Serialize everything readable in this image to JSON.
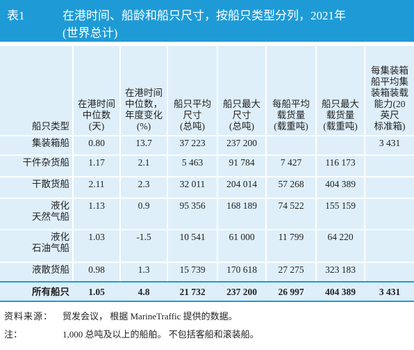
{
  "title": {
    "label": "表1",
    "text": "在港时间、船龄和船只尺寸，按船只类型分列，2021年",
    "subtitle": "(世界总计)"
  },
  "table": {
    "headers": [
      [
        "船只类型"
      ],
      [
        "在港时间",
        "中位数",
        "(天)"
      ],
      [
        "在港时间",
        "中位数，",
        "年度变化",
        "(%)"
      ],
      [
        "船只平均",
        "尺寸",
        "(总吨)"
      ],
      [
        "船只最大",
        "尺寸",
        "(总吨)"
      ],
      [
        "每船平均",
        "载货量",
        "(载重吨)"
      ],
      [
        "船只最大",
        "载货量",
        "(载重吨)"
      ],
      [
        "每集装箱",
        "船平均集",
        "装箱装载",
        "能力(20",
        "英尺",
        "标准箱)"
      ]
    ],
    "rows": [
      {
        "type": [
          "集装箱船"
        ],
        "cells": [
          "0.80",
          "13.7",
          "37 223",
          "237 200",
          null,
          null,
          "3 431"
        ]
      },
      {
        "type": [
          "干件杂货船"
        ],
        "cells": [
          "1.17",
          "2.1",
          "5 463",
          "91 784",
          "7 427",
          "116 173",
          null
        ]
      },
      {
        "type": [
          "干散货船"
        ],
        "cells": [
          "2.11",
          "2.3",
          "32 011",
          "204 014",
          "57 268",
          "404 389",
          null
        ]
      },
      {
        "type": [
          "液化",
          "天然气船"
        ],
        "cells": [
          "1.13",
          "0.9",
          "95 356",
          "168 189",
          "74 522",
          "155 159",
          null
        ]
      },
      {
        "type": [
          "液化",
          "石油气船"
        ],
        "cells": [
          "1.03",
          "-1.5",
          "10 541",
          "61 000",
          "11 799",
          "64 220",
          null
        ]
      },
      {
        "type": [
          "液散货船"
        ],
        "cells": [
          "0.98",
          "1.3",
          "15 739",
          "170 618",
          "27 275",
          "323 183",
          null
        ]
      }
    ],
    "total": {
      "type": [
        "所有船只"
      ],
      "cells": [
        "1.05",
        "4.8",
        "21 732",
        "237 200",
        "26 997",
        "404 389",
        "3 431"
      ]
    }
  },
  "notes": {
    "source_label": "资料来源：",
    "source": "贸发会议， 根据 MarineTraffic 提供的数据。",
    "note_label": "注：",
    "note": "1,000 总吨及以上的船舶。 不包括客船和滚装船。"
  }
}
